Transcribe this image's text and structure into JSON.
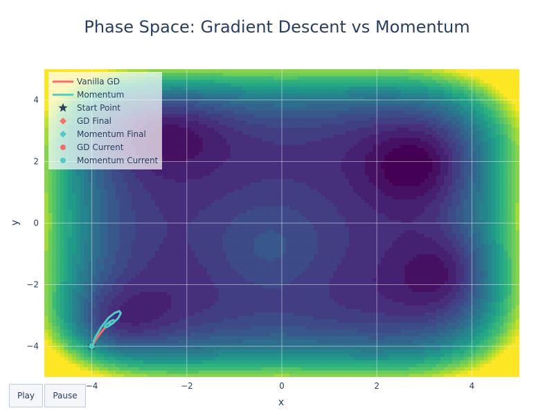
{
  "colors": {
    "background": "#ffffff",
    "text": "#2a3f5f",
    "vanilla_gd": "#ff6b6b",
    "momentum": "#4ecdc4",
    "start_point": "#2a3f5f",
    "colorscale": "viridis"
  },
  "controls": {
    "play_label": "Play",
    "pause_label": "Pause"
  },
  "chart_data": {
    "type": "contour",
    "title": "Phase Space: Gradient Descent vs Momentum",
    "xlabel": "x",
    "ylabel": "y",
    "xlim": [
      -5,
      5
    ],
    "ylim": [
      -5,
      5
    ],
    "x_ticks": [
      -4,
      -2,
      0,
      2,
      4
    ],
    "y_ticks": [
      -4,
      -2,
      0,
      2,
      4
    ],
    "x_tick_labels": [
      "−4",
      "−2",
      "0",
      "2",
      "4"
    ],
    "y_tick_labels": [
      "−4",
      "−2",
      "0",
      "2",
      "4"
    ],
    "grid": true,
    "legend_position": "top-left",
    "surface_minima": [
      {
        "x": -2.5,
        "y": 3.1
      },
      {
        "x": 2.9,
        "y": 1.9
      },
      {
        "x": 3.5,
        "y": -1.6
      },
      {
        "x": -3.6,
        "y": -3.3
      }
    ],
    "surface_maximum": {
      "x": -0.3,
      "y": -0.9
    },
    "series": [
      {
        "name": "Vanilla GD",
        "type": "line",
        "color": "#ff6b6b",
        "x": [
          -4.0,
          -3.96,
          -3.9,
          -3.82,
          -3.75,
          -3.7
        ],
        "y": [
          -4.0,
          -3.9,
          -3.75,
          -3.58,
          -3.45,
          -3.38
        ]
      },
      {
        "name": "Momentum",
        "type": "line",
        "color": "#4ecdc4",
        "x": [
          -4.0,
          -3.93,
          -3.8,
          -3.65,
          -3.52,
          -3.42,
          -3.39,
          -3.45,
          -3.57,
          -3.68,
          -3.73,
          -3.7,
          -3.62,
          -3.55,
          -3.52,
          -3.55,
          -3.6,
          -3.63,
          -3.62,
          -3.59
        ],
        "y": [
          -4.0,
          -3.72,
          -3.38,
          -3.08,
          -2.92,
          -2.86,
          -2.93,
          -3.1,
          -3.27,
          -3.38,
          -3.38,
          -3.3,
          -3.2,
          -3.15,
          -3.18,
          -3.25,
          -3.3,
          -3.3,
          -3.26,
          -3.24
        ]
      },
      {
        "name": "Start Point",
        "type": "marker",
        "symbol": "star",
        "color": "#2a3f5f",
        "x": [
          -4.0
        ],
        "y": [
          -4.0
        ]
      },
      {
        "name": "GD Final",
        "type": "marker",
        "symbol": "diamond",
        "color": "#ff6b6b",
        "x": [
          -4.0
        ],
        "y": [
          -4.0
        ]
      },
      {
        "name": "Momentum Final",
        "type": "marker",
        "symbol": "diamond",
        "color": "#4ecdc4",
        "x": [
          -4.0
        ],
        "y": [
          -4.0
        ]
      },
      {
        "name": "GD Current",
        "type": "marker",
        "symbol": "circle",
        "color": "#ff6b6b",
        "x": [
          -4.0
        ],
        "y": [
          -4.0
        ]
      },
      {
        "name": "Momentum Current",
        "type": "marker",
        "symbol": "circle",
        "color": "#4ecdc4",
        "x": [
          -4.0
        ],
        "y": [
          -4.0
        ]
      }
    ]
  }
}
